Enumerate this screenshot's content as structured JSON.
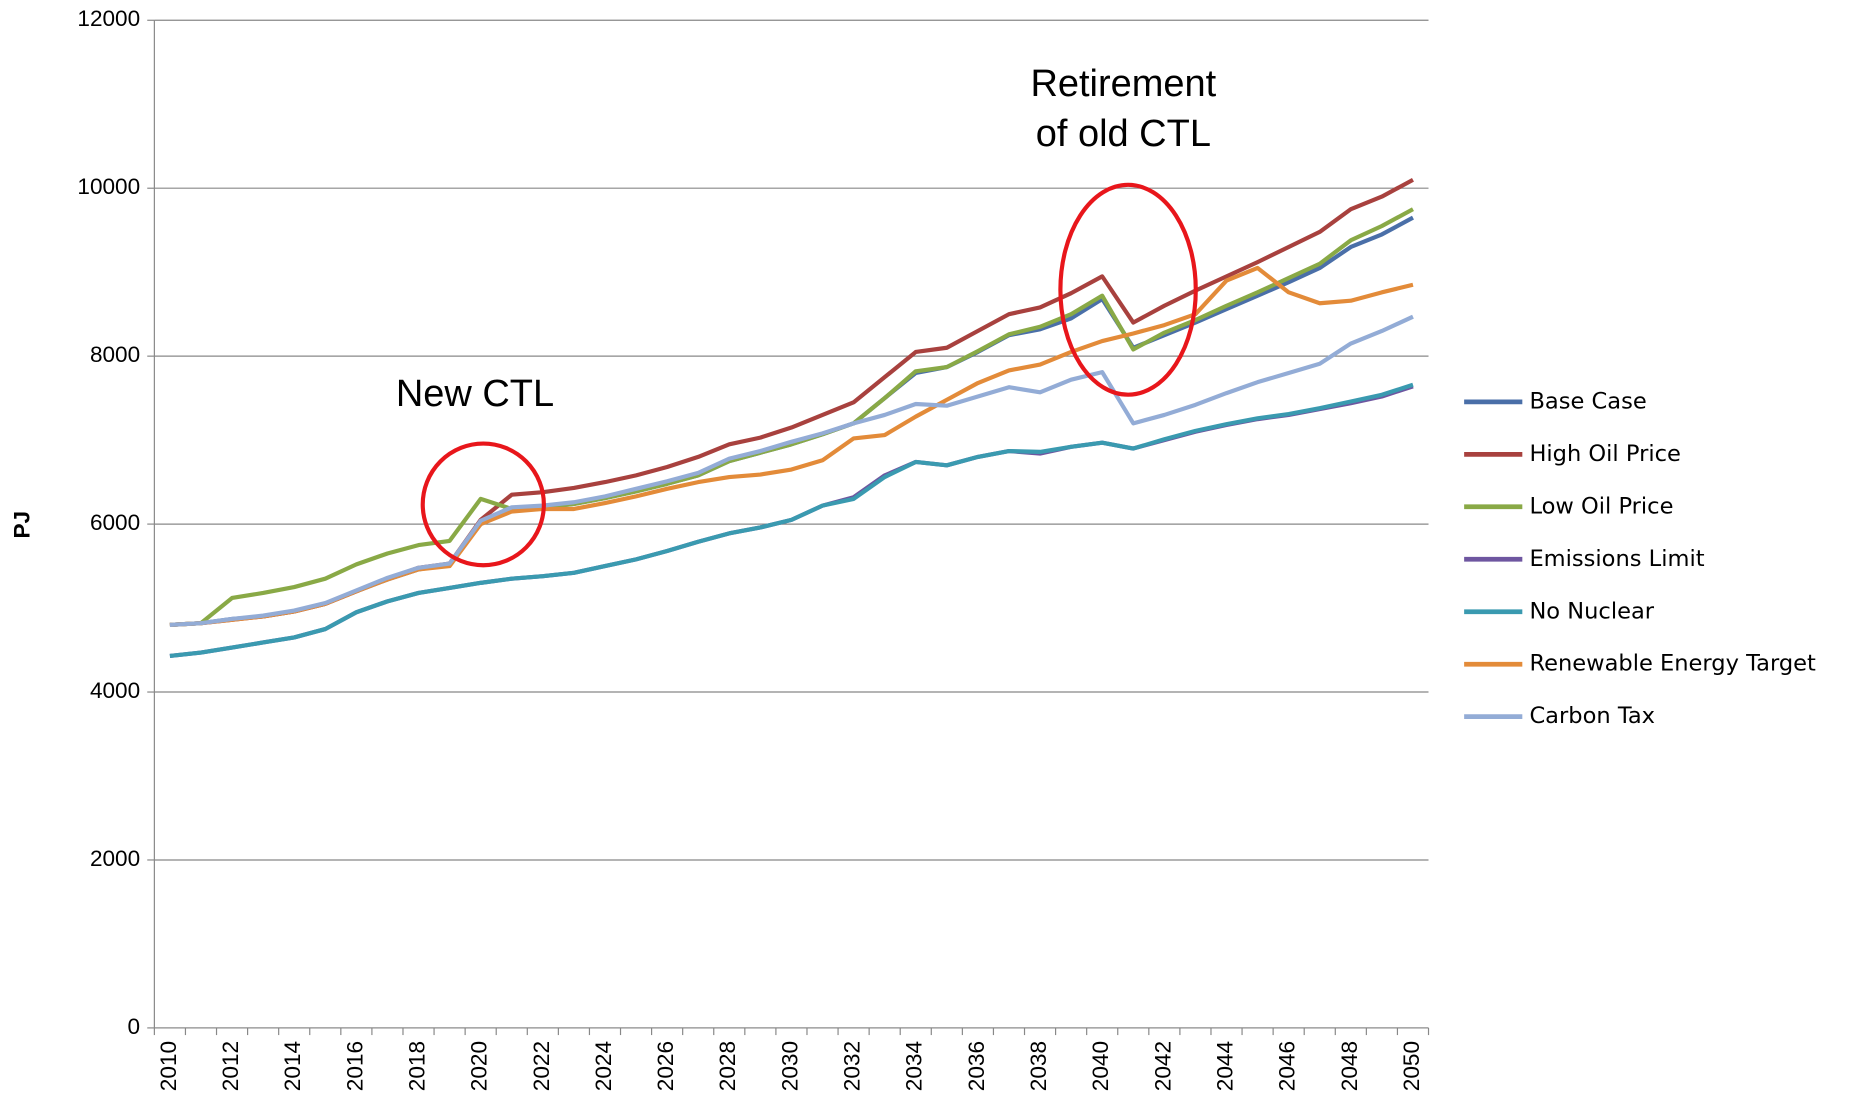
{
  "chart_data": {
    "type": "line",
    "y_label": "PJ",
    "categories": [
      "2010",
      null,
      "2012",
      null,
      "2014",
      null,
      "2016",
      null,
      "2018",
      null,
      "2020",
      null,
      "2022",
      null,
      "2024",
      null,
      "2026",
      null,
      "2028",
      null,
      "2030",
      null,
      "2032",
      null,
      "2034",
      null,
      "2036",
      null,
      "2038",
      null,
      "2040",
      null,
      "2042",
      null,
      "2044",
      null,
      "2046",
      null,
      "2048",
      null,
      "2050"
    ],
    "ylim": [
      0,
      12000
    ],
    "yticks": [
      0,
      2000,
      4000,
      6000,
      8000,
      10000,
      12000
    ],
    "grid": true,
    "legend": "right",
    "annotations": [
      {
        "lines": [
          "New CTL"
        ]
      },
      {
        "lines": [
          "Retirement",
          "of old CTL"
        ]
      }
    ],
    "series": [
      {
        "name": "Base Case",
        "color": "#4a6fa8",
        "values": [
          4800,
          4820,
          4870,
          4900,
          4960,
          5050,
          5200,
          5340,
          5460,
          5520,
          6000,
          6180,
          6200,
          6240,
          6310,
          6390,
          6480,
          6580,
          6750,
          6850,
          6950,
          7070,
          7200,
          7500,
          7800,
          7870,
          8050,
          8250,
          8320,
          8450,
          8680,
          8100,
          8250,
          8400,
          8560,
          8720,
          8880,
          9050,
          9300,
          9450,
          9650
        ]
      },
      {
        "name": "High Oil Price",
        "color": "#a8413e",
        "values": [
          4800,
          4820,
          4860,
          4900,
          4960,
          5050,
          5200,
          5350,
          5480,
          5530,
          6050,
          6350,
          6380,
          6430,
          6500,
          6580,
          6680,
          6800,
          6950,
          7030,
          7150,
          7300,
          7450,
          7750,
          8050,
          8100,
          8300,
          8500,
          8580,
          8750,
          8950,
          8400,
          8600,
          8780,
          8950,
          9120,
          9300,
          9480,
          9750,
          9900,
          10100
        ]
      },
      {
        "name": "Low Oil Price",
        "color": "#89a946",
        "values": [
          4800,
          4820,
          5120,
          5180,
          5250,
          5350,
          5520,
          5650,
          5750,
          5800,
          6300,
          6180,
          6200,
          6240,
          6310,
          6390,
          6480,
          6580,
          6750,
          6850,
          6950,
          7070,
          7200,
          7500,
          7820,
          7870,
          8060,
          8260,
          8350,
          8500,
          8720,
          8080,
          8280,
          8430,
          8600,
          8760,
          8930,
          9100,
          9380,
          9550,
          9750
        ]
      },
      {
        "name": "Emissions Limit",
        "color": "#6e56a0",
        "values": [
          4430,
          4470,
          4530,
          4590,
          4650,
          4750,
          4950,
          5080,
          5180,
          5240,
          5300,
          5350,
          5380,
          5420,
          5500,
          5580,
          5680,
          5790,
          5890,
          5960,
          6050,
          6220,
          6320,
          6580,
          6740,
          6700,
          6800,
          6870,
          6840,
          6920,
          6970,
          6900,
          7000,
          7100,
          7180,
          7250,
          7300,
          7370,
          7440,
          7520,
          7640
        ]
      },
      {
        "name": "No Nuclear",
        "color": "#3a9ab0",
        "values": [
          4430,
          4470,
          4530,
          4590,
          4650,
          4750,
          4950,
          5080,
          5180,
          5240,
          5300,
          5350,
          5380,
          5420,
          5500,
          5580,
          5680,
          5790,
          5890,
          5960,
          6050,
          6220,
          6300,
          6560,
          6740,
          6700,
          6800,
          6870,
          6860,
          6920,
          6970,
          6900,
          7010,
          7110,
          7190,
          7260,
          7310,
          7380,
          7460,
          7540,
          7660
        ]
      },
      {
        "name": "Renewable Energy Target",
        "color": "#e38b39",
        "values": [
          4800,
          4820,
          4860,
          4900,
          4960,
          5050,
          5200,
          5340,
          5460,
          5500,
          6000,
          6150,
          6180,
          6180,
          6250,
          6330,
          6420,
          6500,
          6560,
          6590,
          6650,
          6760,
          7020,
          7060,
          7280,
          7480,
          7680,
          7830,
          7900,
          8050,
          8180,
          8270,
          8370,
          8500,
          8900,
          9050,
          8760,
          8630,
          8660,
          8760,
          8850
        ]
      },
      {
        "name": "Carbon Tax",
        "color": "#93acd6",
        "values": [
          4800,
          4820,
          4870,
          4910,
          4970,
          5060,
          5210,
          5360,
          5480,
          5530,
          6040,
          6200,
          6220,
          6260,
          6330,
          6420,
          6510,
          6610,
          6780,
          6870,
          6980,
          7080,
          7200,
          7300,
          7430,
          7410,
          7520,
          7630,
          7570,
          7720,
          7810,
          7200,
          7300,
          7420,
          7560,
          7690,
          7800,
          7910,
          8150,
          8300,
          8470
        ]
      }
    ]
  }
}
